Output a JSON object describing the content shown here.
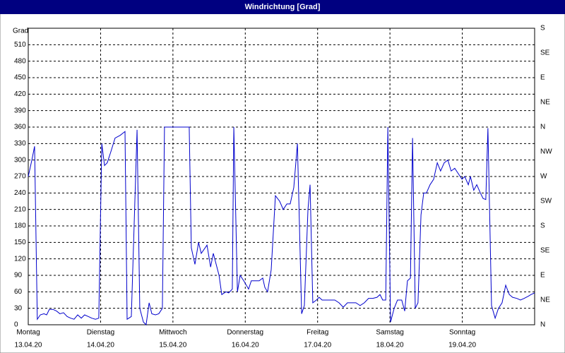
{
  "chart_data": {
    "type": "line",
    "title": "Windrichtung [Grad]",
    "y_label": "Grad",
    "xlim": [
      0,
      168
    ],
    "xticks": [
      {
        "value": 0,
        "label": "Montag",
        "sublabel": "13.04.20"
      },
      {
        "value": 24,
        "label": "Dienstag",
        "sublabel": "14.04.20"
      },
      {
        "value": 48,
        "label": "Mittwoch",
        "sublabel": "15.04.20"
      },
      {
        "value": 72,
        "label": "Donnerstag",
        "sublabel": "16.04.20"
      },
      {
        "value": 96,
        "label": "Freitag",
        "sublabel": "17.04.20"
      },
      {
        "value": 120,
        "label": "Samstag",
        "sublabel": "18.04.20"
      },
      {
        "value": 144,
        "label": "Sonntag",
        "sublabel": "19.04.20"
      }
    ],
    "ylim": [
      0,
      540
    ],
    "yticks": [
      0,
      30,
      60,
      90,
      120,
      150,
      180,
      210,
      240,
      270,
      300,
      330,
      360,
      390,
      420,
      450,
      480,
      510
    ],
    "y2lim": [
      0,
      540
    ],
    "y2ticks": [
      {
        "value": 0,
        "label": "N"
      },
      {
        "value": 45,
        "label": "NE"
      },
      {
        "value": 90,
        "label": "E"
      },
      {
        "value": 135,
        "label": "SE"
      },
      {
        "value": 180,
        "label": "S"
      },
      {
        "value": 225,
        "label": "SW"
      },
      {
        "value": 270,
        "label": "W"
      },
      {
        "value": 315,
        "label": "NW"
      },
      {
        "value": 360,
        "label": "N"
      },
      {
        "value": 405,
        "label": "NE"
      },
      {
        "value": 450,
        "label": "E"
      },
      {
        "value": 495,
        "label": "SE"
      },
      {
        "value": 540,
        "label": "S"
      }
    ],
    "grid": true,
    "series": [
      {
        "color": "#0000cc",
        "x": [
          0,
          1.2,
          2.1,
          3.0,
          4.0,
          5.2,
          6.1,
          7.0,
          8.2,
          9.4,
          10.5,
          11.7,
          12.9,
          14.1,
          15.2,
          16.4,
          17.6,
          18.7,
          19.9,
          21.1,
          22.3,
          23.4,
          24.4,
          25.3,
          26.2,
          27.4,
          28.8,
          30.5,
          32.1,
          32.8,
          34.2,
          36.1,
          37.0,
          38.2,
          39.1,
          40.1,
          41.0,
          42.2,
          43.3,
          44.5,
          45.2,
          46.9,
          49.2,
          51.5,
          53.4,
          54.1,
          55.3,
          56.5,
          57.4,
          59.3,
          60.5,
          61.4,
          63.3,
          64.2,
          65.6,
          66.5,
          67.7,
          68.2,
          69.4,
          70.3,
          71.5,
          73.1,
          74.0,
          75.4,
          76.6,
          77.8,
          78.5,
          79.4,
          80.6,
          82.0,
          83.4,
          84.6,
          85.8,
          86.9,
          88.1,
          89.3,
          90.7,
          91.6,
          92.8,
          93.5,
          94.4,
          95.6,
          96.5,
          97.5,
          98.9,
          100.3,
          101.7,
          103.1,
          104.5,
          105.9,
          107.3,
          108.7,
          110.1,
          111.5,
          112.9,
          114.3,
          115.7,
          116.7,
          117.6,
          118.6,
          119.3,
          120.2,
          121.4,
          122.5,
          123.9,
          124.9,
          125.8,
          126.8,
          127.5,
          128.4,
          129.3,
          130.3,
          131.2,
          132.1,
          133.3,
          134.5,
          135.7,
          136.8,
          138.0,
          139.2,
          140.3,
          141.5,
          142.7,
          143.9,
          144.8,
          146.0,
          146.7,
          147.8,
          148.8,
          150.0,
          150.9,
          151.8,
          152.5,
          153.7,
          154.9,
          156.0,
          157.2,
          158.4,
          159.6,
          160.7,
          162.1,
          163.3,
          164.5,
          165.9,
          166.8,
          168.0
        ],
        "values": [
          270,
          300,
          325,
          10,
          18,
          20,
          18,
          28,
          28,
          25,
          20,
          22,
          15,
          12,
          10,
          18,
          12,
          18,
          15,
          12,
          10,
          12,
          330,
          290,
          295,
          315,
          340,
          345,
          352,
          10,
          15,
          355,
          30,
          5,
          0,
          40,
          20,
          18,
          20,
          30,
          360,
          360,
          360,
          360,
          360,
          140,
          110,
          150,
          130,
          145,
          105,
          130,
          90,
          55,
          60,
          58,
          65,
          360,
          60,
          90,
          80,
          65,
          80,
          80,
          80,
          85,
          68,
          60,
          100,
          235,
          225,
          210,
          220,
          220,
          250,
          330,
          20,
          35,
          210,
          255,
          40,
          45,
          50,
          45,
          45,
          45,
          45,
          40,
          32,
          40,
          40,
          40,
          35,
          40,
          48,
          48,
          50,
          55,
          45,
          45,
          360,
          5,
          30,
          45,
          45,
          25,
          80,
          85,
          340,
          30,
          40,
          200,
          240,
          240,
          255,
          265,
          295,
          280,
          295,
          300,
          280,
          285,
          275,
          265,
          270,
          255,
          270,
          245,
          255,
          240,
          230,
          228,
          358,
          35,
          12,
          30,
          40,
          72,
          55,
          50,
          48,
          45,
          48,
          52,
          55,
          58
        ]
      }
    ]
  }
}
